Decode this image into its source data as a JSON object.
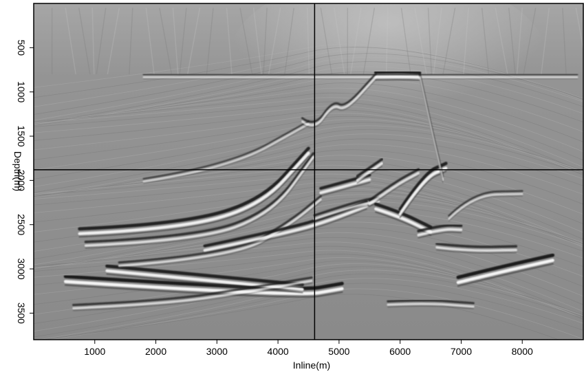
{
  "chart_data": {
    "type": "heatmap",
    "title": "",
    "xlabel": "Inline(m)",
    "ylabel": "Depth(m)",
    "xlim": [
      0,
      9000
    ],
    "ylim": [
      3800,
      0
    ],
    "x_ticks": [
      1000,
      2000,
      3000,
      4000,
      5000,
      6000,
      7000,
      8000
    ],
    "x_tick_labels": [
      "1000",
      "2000",
      "3000",
      "4000",
      "5000",
      "6000",
      "7000",
      "8000"
    ],
    "y_ticks": [
      500,
      1000,
      1500,
      2000,
      2500,
      3000,
      3500
    ],
    "y_tick_labels": [
      "500",
      "1000",
      "1500",
      "2000",
      "2500",
      "3000",
      "3500"
    ],
    "colormap": "gray",
    "background_color": "#8c8c8c",
    "crosshair": {
      "x": 4600,
      "y": 1880
    },
    "reflectors": [
      {
        "x": [
          520,
          4300,
          5050
        ],
        "y": [
          3120,
          3290,
          3200
        ],
        "strength": 1.0
      },
      {
        "x": [
          1200,
          4400
        ],
        "y": [
          3000,
          3210
        ],
        "strength": 0.9
      },
      {
        "x": [
          650,
          2200,
          3600,
          4550
        ],
        "y": [
          3430,
          3380,
          3230,
          3120
        ],
        "strength": 0.5
      },
      {
        "x": [
          750,
          2300,
          3700,
          4500
        ],
        "y": [
          2580,
          2530,
          2280,
          1670
        ],
        "strength": 0.9
      },
      {
        "x": [
          850,
          2700,
          3900,
          4580
        ],
        "y": [
          2720,
          2660,
          2360,
          1720
        ],
        "strength": 0.6
      },
      {
        "x": [
          1400,
          3300,
          4200,
          4700
        ],
        "y": [
          2950,
          2850,
          2480,
          2200
        ],
        "strength": 0.5
      },
      {
        "x": [
          2800,
          4200,
          4900,
          5450
        ],
        "y": [
          2770,
          2570,
          2420,
          2270
        ],
        "strength": 0.8
      },
      {
        "x": [
          4600,
          5300,
          5650
        ],
        "y": [
          2420,
          2260,
          2220
        ],
        "strength": 0.6
      },
      {
        "x": [
          4700,
          5500
        ],
        "y": [
          2120,
          1970
        ],
        "strength": 0.8
      },
      {
        "x": [
          5300,
          5700
        ],
        "y": [
          1980,
          1790
        ],
        "strength": 0.7
      },
      {
        "x": [
          5600,
          6000,
          6500
        ],
        "y": [
          2300,
          2390,
          2560
        ],
        "strength": 0.9
      },
      {
        "x": [
          5500,
          5900,
          6300
        ],
        "y": [
          2250,
          2050,
          1900
        ],
        "strength": 0.6
      },
      {
        "x": [
          6000,
          6400,
          6750
        ],
        "y": [
          2360,
          1950,
          1840
        ],
        "strength": 0.9
      },
      {
        "x": [
          6300,
          6700,
          7000
        ],
        "y": [
          2600,
          2530,
          2540
        ],
        "strength": 0.7
      },
      {
        "x": [
          6600,
          7100,
          7900
        ],
        "y": [
          2740,
          2780,
          2770
        ],
        "strength": 0.6
      },
      {
        "x": [
          6800,
          7200,
          8000
        ],
        "y": [
          2420,
          2150,
          2140
        ],
        "strength": 0.4
      },
      {
        "x": [
          6950,
          7600,
          8500
        ],
        "y": [
          3130,
          3020,
          2880
        ],
        "strength": 1.0
      },
      {
        "x": [
          5800,
          6400,
          7200
        ],
        "y": [
          3390,
          3370,
          3410
        ],
        "strength": 0.5
      },
      {
        "x": [
          1800,
          3200,
          4500
        ],
        "y": [
          2000,
          1850,
          1350
        ],
        "strength": 0.35
      },
      {
        "x": [
          5600,
          6000,
          6320
        ],
        "y": [
          810,
          805,
          815
        ],
        "strength": 0.85
      },
      {
        "x": [
          1800,
          5600,
          8900
        ],
        "y": [
          820,
          820,
          820
        ],
        "strength": 0.35
      },
      {
        "x": [
          4400,
          4600,
          4900,
          5100,
          5600
        ],
        "y": [
          1320,
          1420,
          1120,
          1200,
          820
        ],
        "strength": 0.5
      },
      {
        "x": [
          6320,
          6500,
          6700
        ],
        "y": [
          820,
          1400,
          1980
        ],
        "strength": 0.5
      }
    ]
  }
}
